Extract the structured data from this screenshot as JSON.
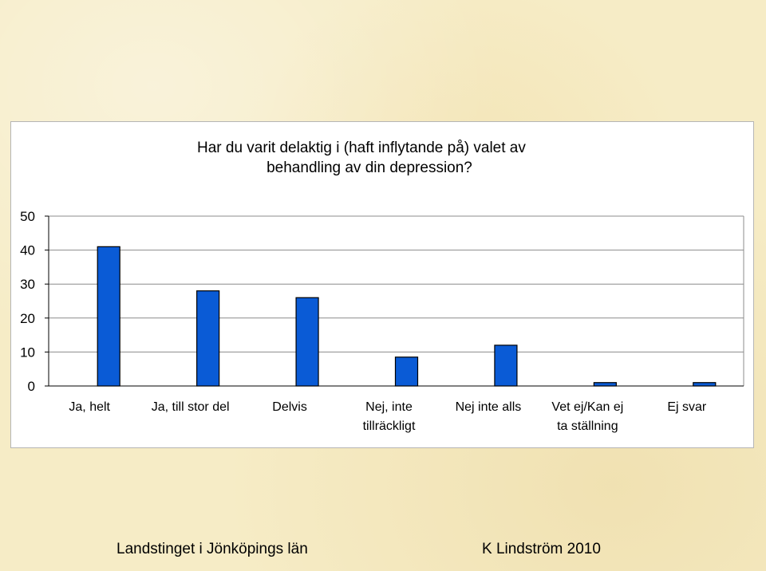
{
  "chart_data": {
    "type": "bar",
    "title_lines": [
      "Har du varit delaktig i (haft inflytande på) valet av",
      "behandling av din depression?"
    ],
    "categories": [
      [
        "Ja, helt"
      ],
      [
        "Ja, till stor del"
      ],
      [
        "Delvis"
      ],
      [
        "Nej, inte",
        "tillräckligt"
      ],
      [
        "Nej inte alls"
      ],
      [
        "Vet ej/Kan ej",
        "ta ställning"
      ],
      [
        "Ej svar"
      ]
    ],
    "values": [
      41,
      28,
      26,
      8.5,
      12,
      1,
      1
    ],
    "ylim": [
      0,
      50
    ],
    "yticks": [
      "0",
      "10",
      "20",
      "30",
      "40",
      "50"
    ],
    "bar_color": "#0a5bd6",
    "grid": true
  },
  "footer": {
    "left": "Landstinget i Jönköpings län",
    "right": "K Lindström 2010"
  }
}
